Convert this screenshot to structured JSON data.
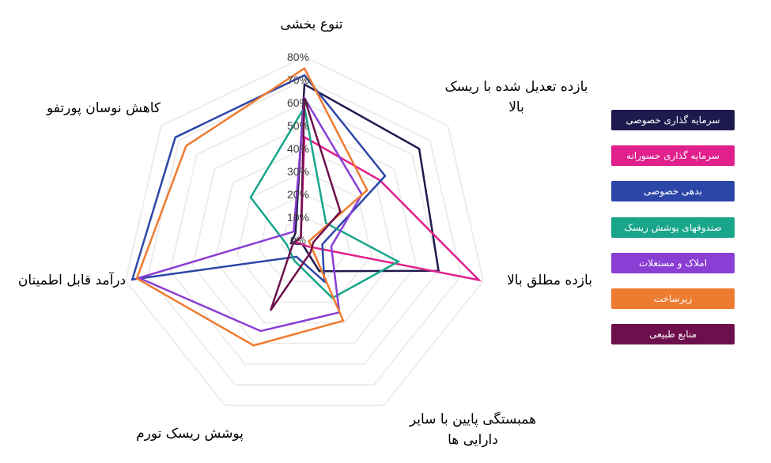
{
  "colors": {
    "grid": "#ededed",
    "text": "#3f51b5",
    "tick_text": "#404040"
  },
  "chart_data": {
    "type": "radar",
    "axes": [
      "تنوع بخشی",
      "بازده تعدیل شده با ریسک بالا",
      "بازده مطلق بالا",
      "همبستگی پایین با سایر دارایی ها",
      "پوشش ریسک تورم",
      "درآمد قابل اطمینان",
      "کاهش نوسان پورتفو"
    ],
    "radial_ticks": [
      "0%",
      "10%",
      "20%",
      "30%",
      "40%",
      "50%",
      "60%",
      "70%",
      "80%"
    ],
    "range": [
      0,
      80
    ],
    "grid": true,
    "legend_position": "right",
    "series": [
      {
        "name": "سرمایه گذاری خصوصی",
        "color": "#1f1a4e",
        "values": [
          68,
          64,
          60,
          15,
          2,
          6,
          5
        ]
      },
      {
        "name": "سرمایه گذاری جسورانه",
        "color": "#e0208c",
        "values": [
          45,
          42,
          78,
          3,
          2,
          4,
          2
        ]
      },
      {
        "name": "بدهی خصوصی",
        "color": "#2c46a8",
        "values": [
          72,
          45,
          8,
          20,
          8,
          77,
          72
        ]
      },
      {
        "name": "صندوقهای پوشش ریسک",
        "color": "#18a58a",
        "values": [
          58,
          12,
          42,
          28,
          10,
          8,
          30
        ]
      },
      {
        "name": "املاک و مستغلات",
        "color": "#8a3ed4",
        "values": [
          62,
          32,
          12,
          35,
          44,
          74,
          6
        ]
      },
      {
        "name": "زیرساخت",
        "color": "#ee7b30",
        "values": [
          75,
          35,
          2,
          39,
          51,
          75,
          66
        ]
      },
      {
        "name": "منابع طبیعی",
        "color": "#6e0f4d",
        "values": [
          62,
          20,
          4,
          6,
          34,
          5,
          2
        ]
      }
    ]
  }
}
